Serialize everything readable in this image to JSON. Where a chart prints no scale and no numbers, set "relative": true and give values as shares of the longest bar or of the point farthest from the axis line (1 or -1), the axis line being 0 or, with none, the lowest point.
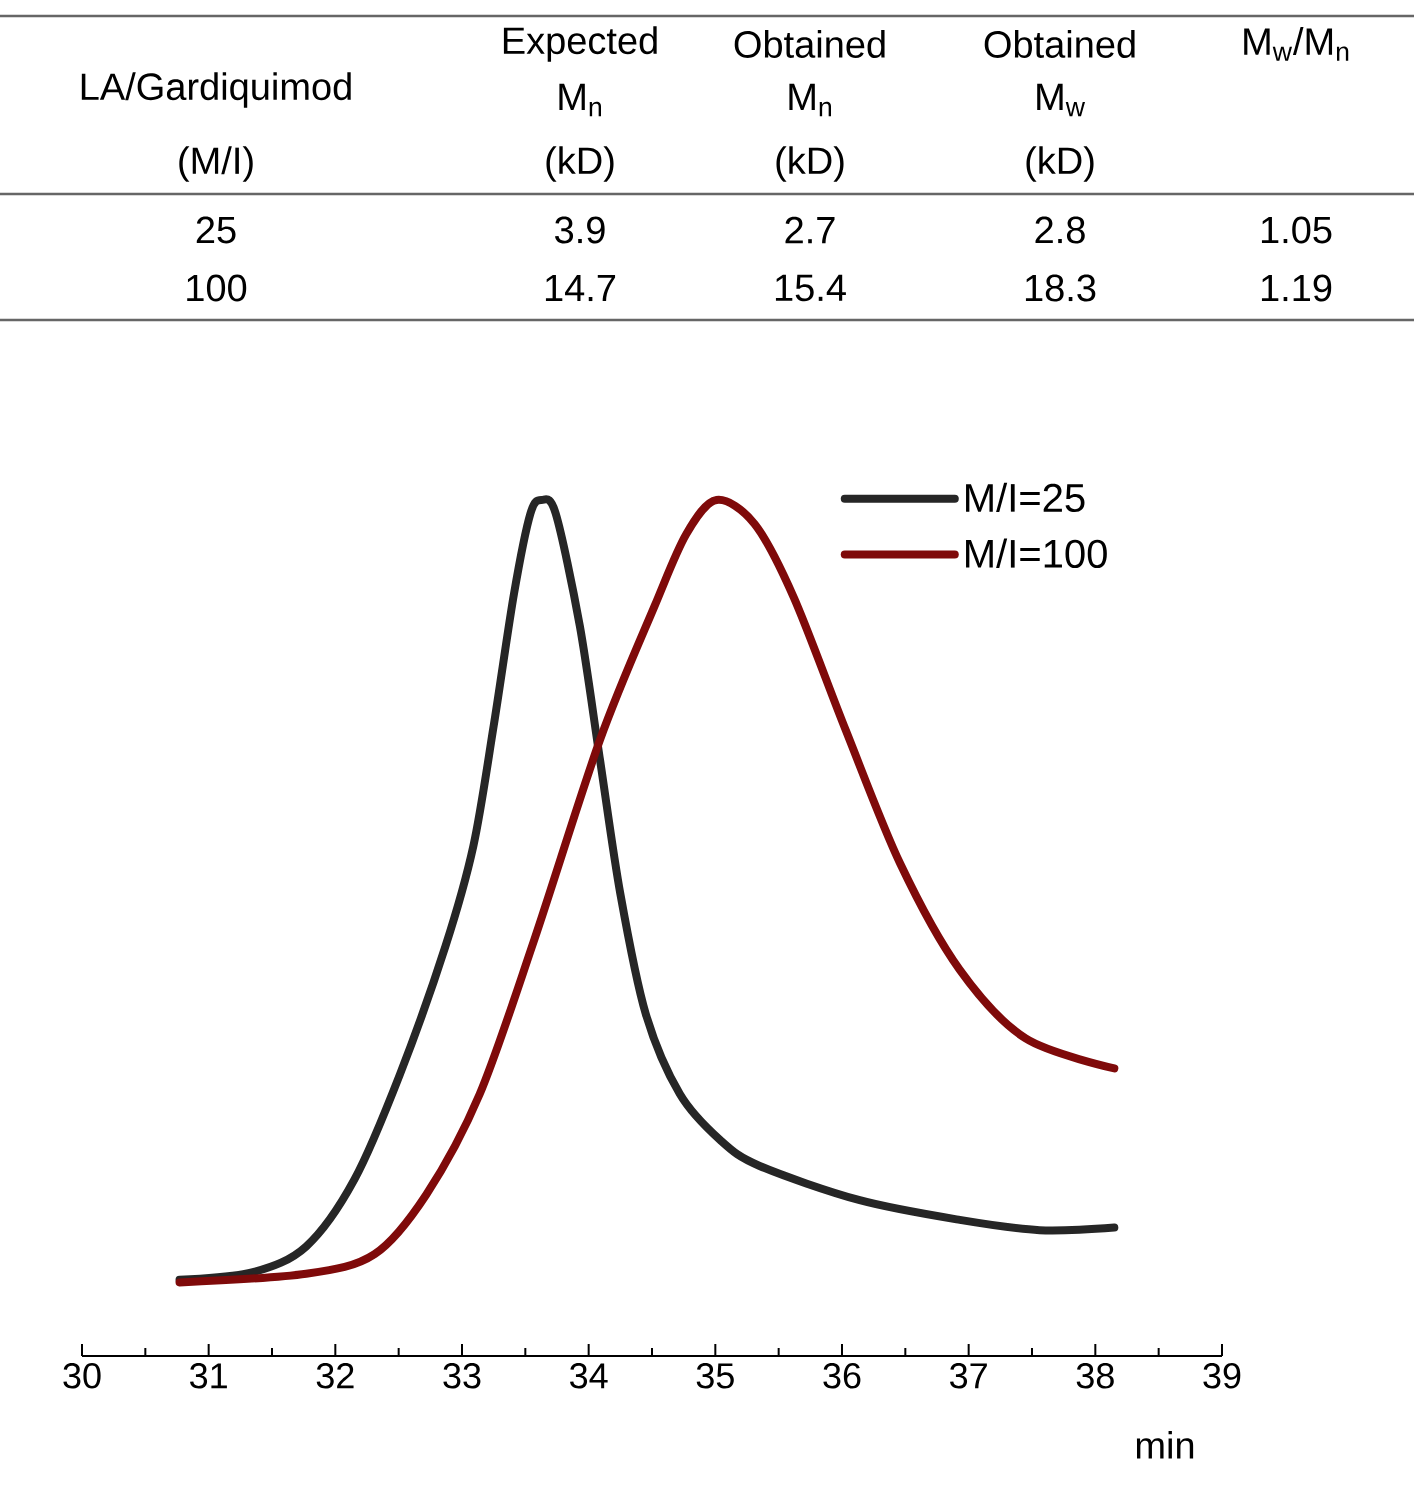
{
  "chart_data": {
    "type": "line",
    "relative": true,
    "xlabel": "min",
    "xlim": [
      30,
      39
    ],
    "xticks": [
      30,
      31,
      32,
      33,
      34,
      35,
      36,
      37,
      38,
      39
    ],
    "legend": "top right",
    "marker": "none",
    "line_style": "solid",
    "grid": false,
    "series": [
      {
        "name": "M/I=25",
        "color": "#262626",
        "x": [
          30.77,
          31.35,
          31.77,
          32.15,
          32.51,
          32.87,
          33.09,
          33.25,
          33.41,
          33.54,
          33.63,
          33.74,
          33.93,
          34.09,
          34.25,
          34.45,
          34.72,
          35.04,
          35.35,
          36.14,
          36.93,
          37.56,
          38.15
        ],
        "values": [
          0.089,
          0.098,
          0.128,
          0.206,
          0.329,
          0.479,
          0.596,
          0.736,
          0.89,
          0.984,
          1,
          0.984,
          0.853,
          0.696,
          0.54,
          0.4,
          0.306,
          0.252,
          0.222,
          0.182,
          0.159,
          0.147,
          0.15
        ]
      },
      {
        "name": "M/I=100",
        "color": "#7f0a0a",
        "x": [
          30.77,
          31.77,
          32.31,
          32.72,
          33.14,
          33.57,
          34.09,
          34.52,
          34.77,
          35.01,
          35.31,
          35.62,
          36.03,
          36.46,
          36.93,
          37.45,
          38.15
        ],
        "values": [
          0.086,
          0.096,
          0.119,
          0.189,
          0.306,
          0.486,
          0.72,
          0.876,
          0.96,
          1,
          0.972,
          0.886,
          0.731,
          0.575,
          0.451,
          0.371,
          0.336
        ]
      }
    ],
    "annotations": [
      "LA/Gardiquimod",
      "Expected",
      "Obtained",
      "Obtained",
      "M$_{w}$/M$_{n}$",
      "M$_{n}$",
      "M$_{n}$",
      "M$_{w}$",
      "(M/I)",
      "(kD)",
      "(kD)",
      "(kD)",
      "25",
      "3.9",
      "2.7",
      "2.8",
      "1.05",
      "100",
      "14.7",
      "15.4",
      "18.3",
      "1.19"
    ]
  }
}
